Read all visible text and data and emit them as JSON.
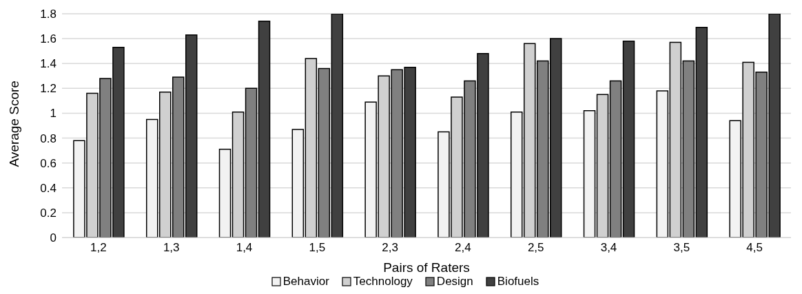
{
  "chart_data": {
    "type": "bar",
    "xlabel": "Pairs of Raters",
    "ylabel": "Average Score",
    "categories": [
      "1,2",
      "1,3",
      "1,4",
      "1,5",
      "2,3",
      "2,4",
      "2,5",
      "3,4",
      "3,5",
      "4,5"
    ],
    "series": [
      {
        "name": "Behavior",
        "color": "#f2f2f2",
        "values": [
          0.78,
          0.95,
          0.71,
          0.87,
          1.09,
          0.85,
          1.01,
          1.02,
          1.18,
          0.94
        ]
      },
      {
        "name": "Technology",
        "color": "#d0d0d0",
        "values": [
          1.16,
          1.17,
          1.01,
          1.44,
          1.3,
          1.13,
          1.56,
          1.15,
          1.57,
          1.41
        ]
      },
      {
        "name": "Design",
        "color": "#808080",
        "values": [
          1.28,
          1.29,
          1.2,
          1.36,
          1.35,
          1.26,
          1.42,
          1.26,
          1.42,
          1.33
        ]
      },
      {
        "name": "Biofuels",
        "color": "#404040",
        "values": [
          1.53,
          1.63,
          1.74,
          1.8,
          1.37,
          1.48,
          1.6,
          1.58,
          1.69,
          1.8
        ]
      }
    ],
    "ylim": [
      0,
      1.8
    ],
    "yticks": [
      0,
      0.2,
      0.4,
      0.6,
      0.8,
      1,
      1.2,
      1.4,
      1.6,
      1.8
    ],
    "grid": "y",
    "legend": "bottom"
  }
}
